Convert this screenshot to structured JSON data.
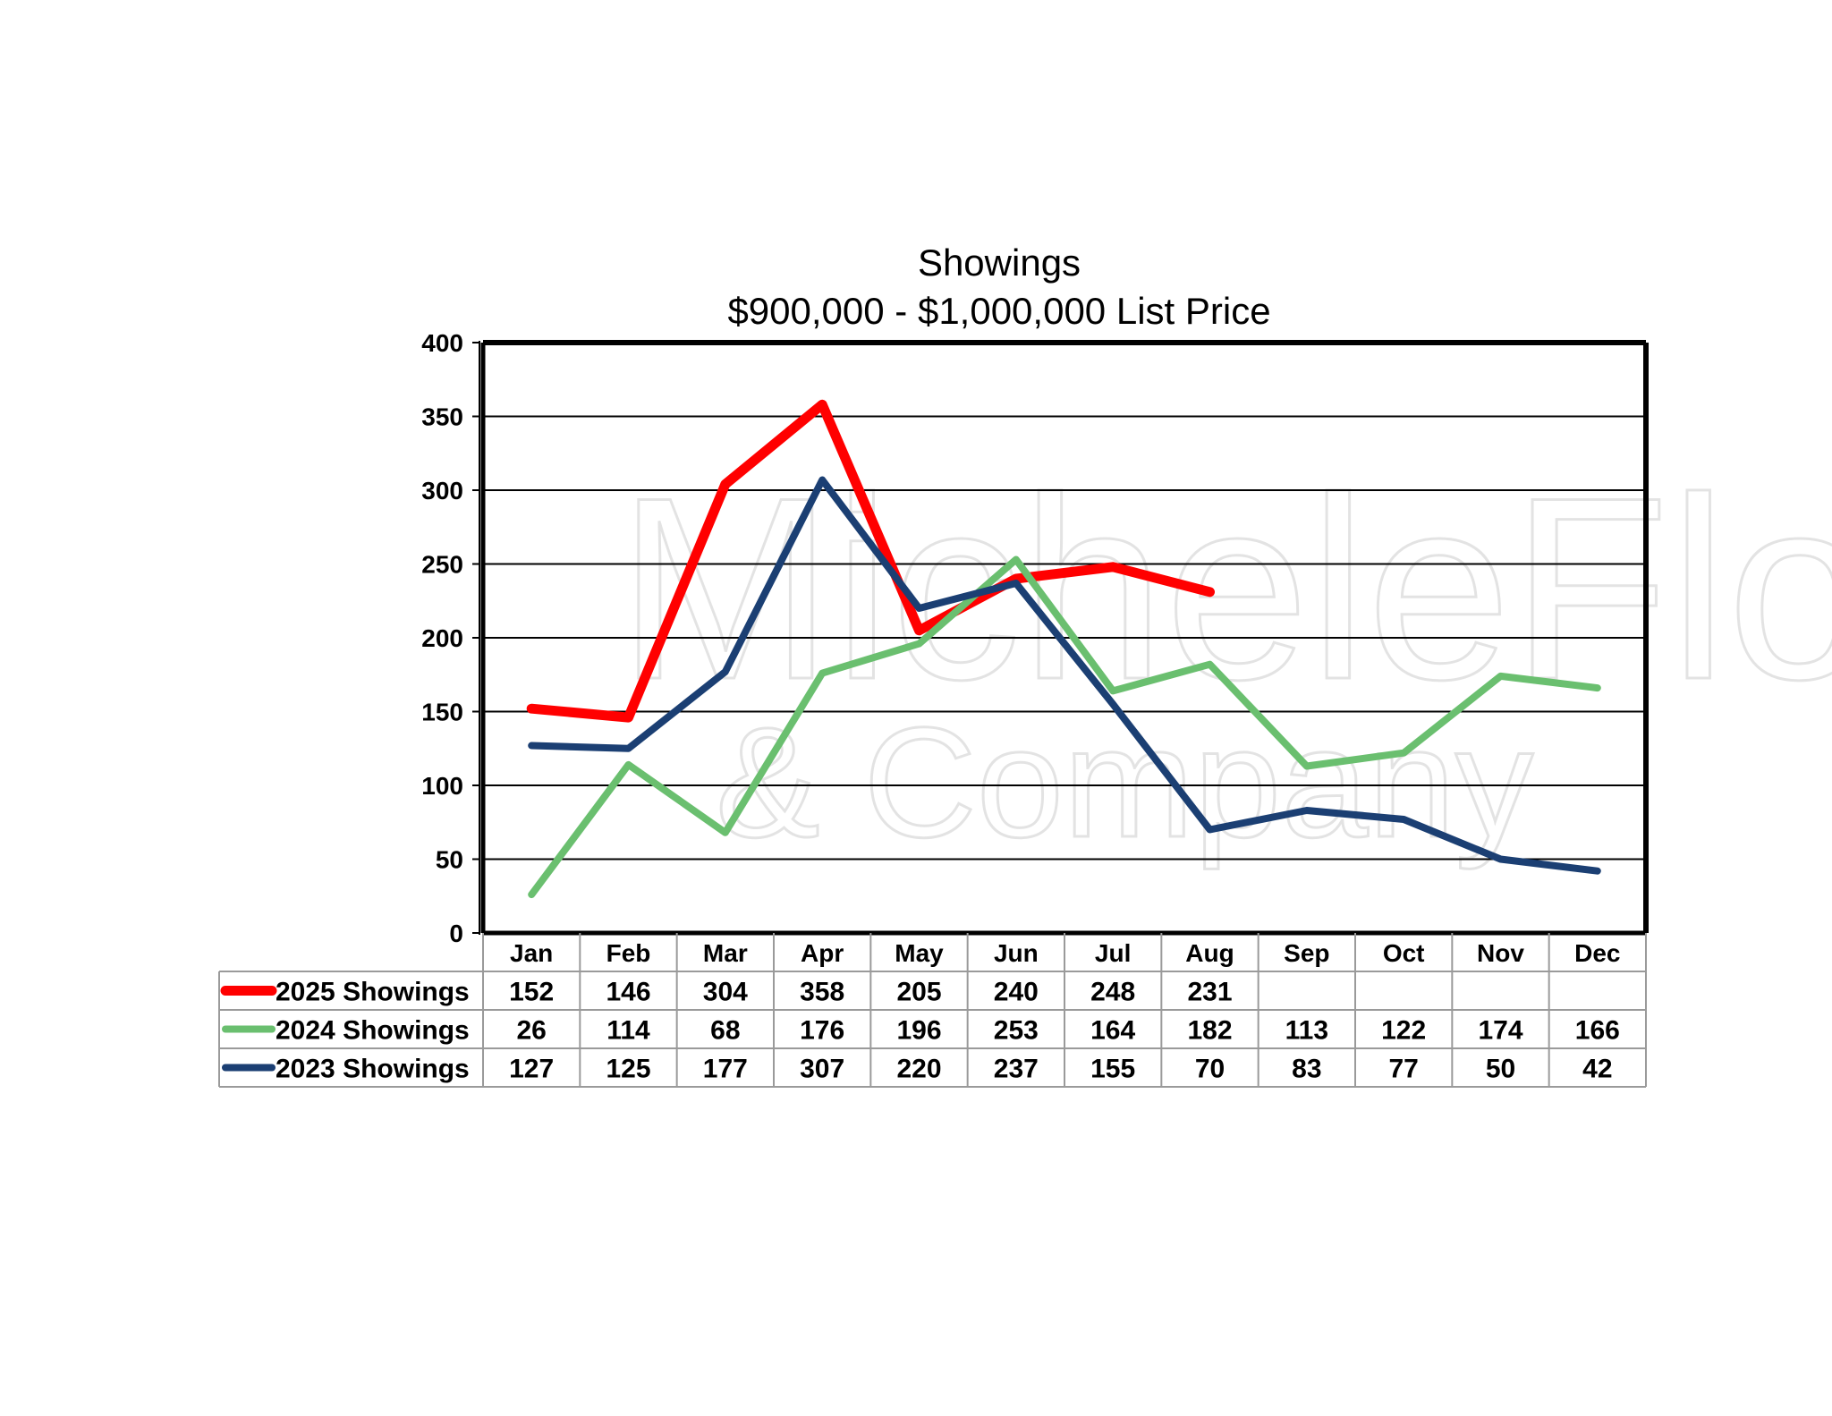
{
  "chart_data": {
    "type": "line",
    "title": "Showings",
    "subtitle": "$900,000 - $1,000,000 List Price",
    "categories": [
      "Jan",
      "Feb",
      "Mar",
      "Apr",
      "May",
      "Jun",
      "Jul",
      "Aug",
      "Sep",
      "Oct",
      "Nov",
      "Dec"
    ],
    "ylim": [
      0,
      400
    ],
    "yticks": [
      0,
      50,
      100,
      150,
      200,
      250,
      300,
      350,
      400
    ],
    "grid": true,
    "legend": "data-table-below",
    "series": [
      {
        "name": "2025 Showings",
        "color": "#ff0000",
        "values": [
          152,
          146,
          304,
          358,
          205,
          240,
          248,
          231,
          null,
          null,
          null,
          null
        ]
      },
      {
        "name": "2024 Showings",
        "color": "#6abf6f",
        "values": [
          26,
          114,
          68,
          176,
          196,
          253,
          164,
          182,
          113,
          122,
          174,
          166
        ]
      },
      {
        "name": "2023 Showings",
        "color": "#1b3f73",
        "values": [
          127,
          125,
          177,
          307,
          220,
          237,
          155,
          70,
          83,
          77,
          50,
          42
        ]
      }
    ],
    "watermark": {
      "line1": "MicheleFlory",
      "line2": "& Company"
    }
  }
}
